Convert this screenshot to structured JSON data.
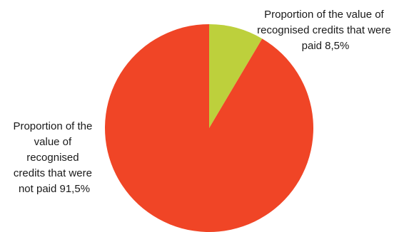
{
  "chart_data": {
    "type": "pie",
    "title": "",
    "slices": [
      {
        "label_lines": [
          "Proportion of the value of",
          "recognised credits that were",
          "paid 8,5%"
        ],
        "value": 8.5,
        "color": "#bdd03c"
      },
      {
        "label_lines": [
          "Proportion of the",
          "value of",
          "recognised",
          "credits that were",
          "not paid 91,5%"
        ],
        "value": 91.5,
        "color": "#f04526"
      }
    ]
  }
}
